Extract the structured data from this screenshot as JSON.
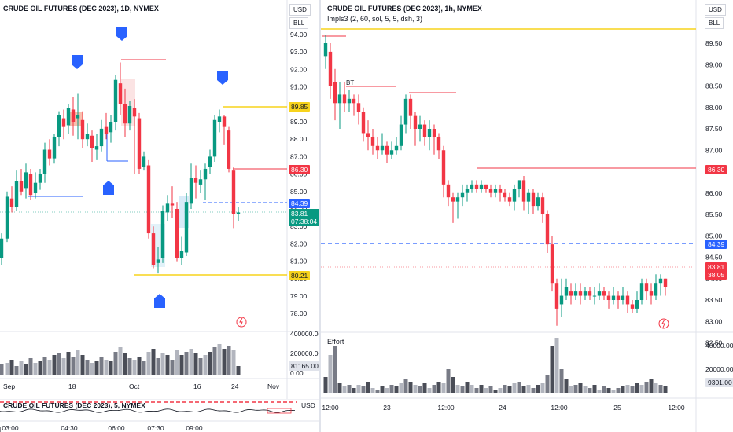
{
  "left_chart": {
    "title": "CRUDE OIL FUTURES (DEC 2023), 1D, NYMEX",
    "currency_button": "USD",
    "unit_button": "BLL",
    "price_ticks": [
      "94.00",
      "93.00",
      "92.00",
      "91.00",
      "90.00",
      "89.00",
      "88.00",
      "87.00",
      "86.00",
      "85.00",
      "84.00",
      "83.00",
      "82.00",
      "81.00",
      "80.00",
      "79.00",
      "78.00"
    ],
    "tags": {
      "yellow_top": "89.85",
      "red": "86.30",
      "blue": "84.39",
      "last": "83.81",
      "countdown": "07:38:04",
      "yellow_bottom": "80.21"
    },
    "volume_ticks": [
      "400000.00",
      "200000.00",
      "0.00"
    ],
    "volume_tag": "81165.00",
    "date_labels": [
      "Sep",
      "18",
      "Oct",
      "16",
      "24",
      "Nov"
    ]
  },
  "mini_chart": {
    "title": "CRUDE OIL FUTURES (DEC 2023), 5, NYMEX",
    "currency_button": "USD",
    "time_labels": [
      "03:00",
      "04:30",
      "06:00",
      "07:30",
      "09:00"
    ]
  },
  "right_chart": {
    "title": "CRUDE OIL FUTURES (DEC 2023), 1h, NYMEX",
    "indicator": "Impls3 (2, 60, sol, 5, 5, dsh, 3)",
    "currency_button": "USD",
    "unit_button": "BLL",
    "annotation": "BTI",
    "price_ticks": [
      "89.50",
      "89.00",
      "88.50",
      "88.00",
      "87.50",
      "87.00",
      "86.50",
      "86.00",
      "85.50",
      "85.00",
      "84.50",
      "84.00",
      "83.50",
      "83.00",
      "82.50"
    ],
    "tags": {
      "red": "86.30",
      "blue": "84.39",
      "last": "83.81",
      "countdown": "38:05"
    },
    "volume_title": "Effort",
    "volume_ticks": [
      "40000.00",
      "20000.00"
    ],
    "volume_tag": "9301.00",
    "time_labels": [
      "12:00",
      "23",
      "12:00",
      "24",
      "12:00",
      "25",
      "12:00"
    ]
  },
  "colors": {
    "up": "#089981",
    "down": "#f23645",
    "blue": "#2962ff",
    "yellow": "#f7d31c",
    "grid": "#e0e3eb"
  }
}
